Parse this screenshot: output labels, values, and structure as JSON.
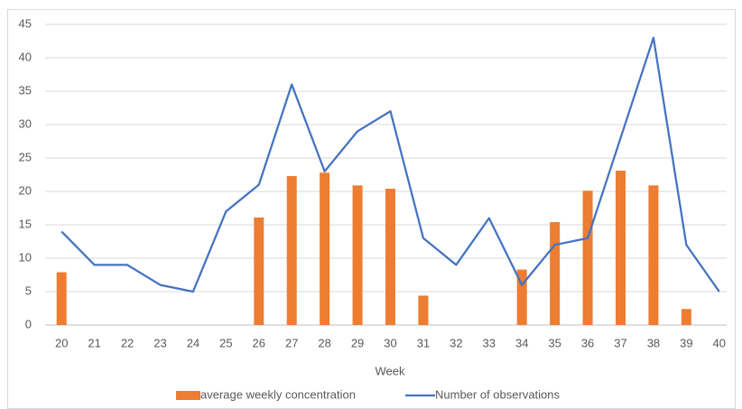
{
  "chart_data": {
    "type": "bar",
    "x_label": "Week",
    "categories": [
      "20",
      "21",
      "22",
      "23",
      "24",
      "25",
      "26",
      "27",
      "28",
      "29",
      "30",
      "31",
      "32",
      "33",
      "34",
      "35",
      "36",
      "37",
      "38",
      "39",
      "40"
    ],
    "series": [
      {
        "name": "average weekly concentration",
        "type": "bar",
        "color": "#ed7d31",
        "values": [
          7.9,
          0,
          0,
          0,
          0,
          0,
          16.1,
          22.3,
          22.8,
          20.9,
          20.4,
          4.4,
          0,
          0,
          8.3,
          15.4,
          20.1,
          23.1,
          20.9,
          2.4,
          0
        ]
      },
      {
        "name": "Number of observations",
        "type": "line",
        "color": "#4472c4",
        "values": [
          14,
          9,
          9,
          6,
          5,
          17,
          21,
          36,
          23,
          29,
          32,
          13,
          9,
          16,
          6,
          12,
          13,
          28,
          43,
          12,
          5
        ]
      }
    ],
    "ylim": [
      0,
      45
    ],
    "yticks": [
      0,
      5,
      10,
      15,
      20,
      25,
      30,
      35,
      40,
      45
    ],
    "grid": true,
    "legend": "bottom"
  }
}
